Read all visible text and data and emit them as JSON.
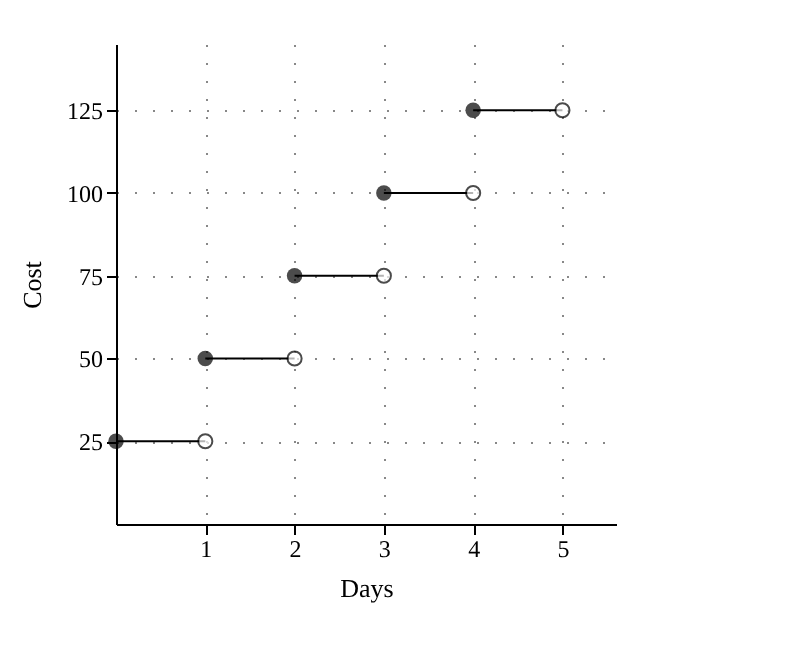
{
  "chart_data": {
    "type": "line",
    "xlabel": "Days",
    "ylabel": "Cost",
    "series": [
      {
        "color": "#000000",
        "x": [
          0,
          1
        ],
        "values": [
          25,
          25
        ]
      },
      {
        "color": "#000000",
        "x": [
          1,
          2
        ],
        "values": [
          50,
          50
        ]
      },
      {
        "color": "#000000",
        "x": [
          2,
          3
        ],
        "values": [
          75,
          75
        ]
      },
      {
        "color": "#000000",
        "x": [
          3,
          4
        ],
        "values": [
          100,
          100
        ]
      },
      {
        "color": "#000000",
        "x": [
          4,
          5
        ],
        "values": [
          125,
          125
        ]
      }
    ],
    "xlim": [
      0,
      5.6
    ],
    "xticks": [
      1,
      2,
      3,
      4,
      5
    ],
    "ylim": [
      0,
      145
    ],
    "yticks": [
      25,
      50,
      75,
      100,
      125
    ],
    "grid": true,
    "marker": "circle",
    "line_style": "solid"
  }
}
